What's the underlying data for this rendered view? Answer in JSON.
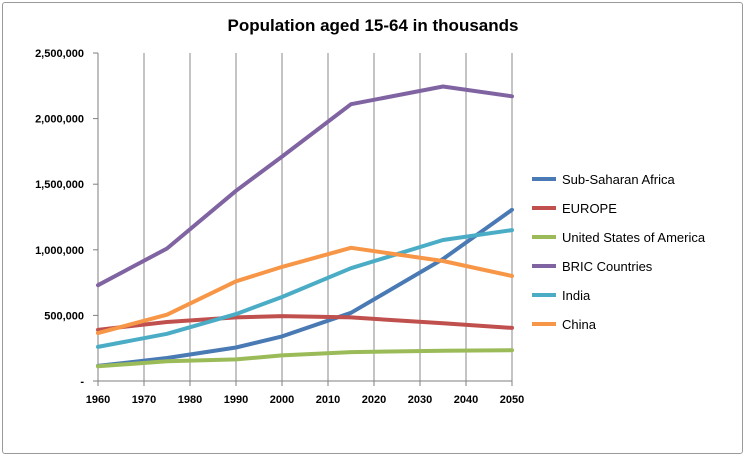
{
  "chart_data": {
    "type": "line",
    "title": "Population aged 15-64 in thousands",
    "xlabel": "",
    "ylabel": "",
    "x_ticks": [
      "1960",
      "1970",
      "1980",
      "1990",
      "2000",
      "2010",
      "2020",
      "2030",
      "2040",
      "2050"
    ],
    "y_ticks": [
      "-",
      "500,000",
      "1,000,000",
      "1,500,000",
      "2,000,000",
      "2,500,000"
    ],
    "y_tick_values": [
      0,
      500000,
      1000000,
      1500000,
      2000000,
      2500000
    ],
    "xlim": [
      1960,
      2050
    ],
    "ylim": [
      0,
      2500000
    ],
    "grid": "vertical",
    "legend_position": "right",
    "series": [
      {
        "name": "Sub-Saharan Africa",
        "color": "#4a7ab4",
        "points": [
          [
            1960,
            115000
          ],
          [
            1975,
            175000
          ],
          [
            1990,
            255000
          ],
          [
            2000,
            340000
          ],
          [
            2015,
            520000
          ],
          [
            2035,
            930000
          ],
          [
            2050,
            1305000
          ]
        ]
      },
      {
        "name": "EUROPE",
        "color": "#c0504d",
        "points": [
          [
            1960,
            390000
          ],
          [
            1975,
            450000
          ],
          [
            1990,
            485000
          ],
          [
            2000,
            495000
          ],
          [
            2015,
            485000
          ],
          [
            2035,
            440000
          ],
          [
            2050,
            405000
          ]
        ]
      },
      {
        "name": "United States of America",
        "color": "#9bbb59",
        "points": [
          [
            1960,
            112000
          ],
          [
            1975,
            150000
          ],
          [
            1990,
            165000
          ],
          [
            2000,
            195000
          ],
          [
            2015,
            220000
          ],
          [
            2035,
            230000
          ],
          [
            2050,
            235000
          ]
        ]
      },
      {
        "name": "BRIC Countries",
        "color": "#8064a2",
        "points": [
          [
            1960,
            730000
          ],
          [
            1975,
            1010000
          ],
          [
            1990,
            1450000
          ],
          [
            2000,
            1710000
          ],
          [
            2015,
            2110000
          ],
          [
            2035,
            2245000
          ],
          [
            2050,
            2170000
          ]
        ]
      },
      {
        "name": "India",
        "color": "#4bacc6",
        "points": [
          [
            1960,
            260000
          ],
          [
            1975,
            360000
          ],
          [
            1990,
            510000
          ],
          [
            2000,
            640000
          ],
          [
            2015,
            860000
          ],
          [
            2035,
            1075000
          ],
          [
            2050,
            1150000
          ]
        ]
      },
      {
        "name": "China",
        "color": "#f79646",
        "points": [
          [
            1960,
            365000
          ],
          [
            1975,
            505000
          ],
          [
            1990,
            760000
          ],
          [
            2000,
            870000
          ],
          [
            2015,
            1015000
          ],
          [
            2035,
            915000
          ],
          [
            2050,
            800000
          ]
        ]
      }
    ]
  }
}
